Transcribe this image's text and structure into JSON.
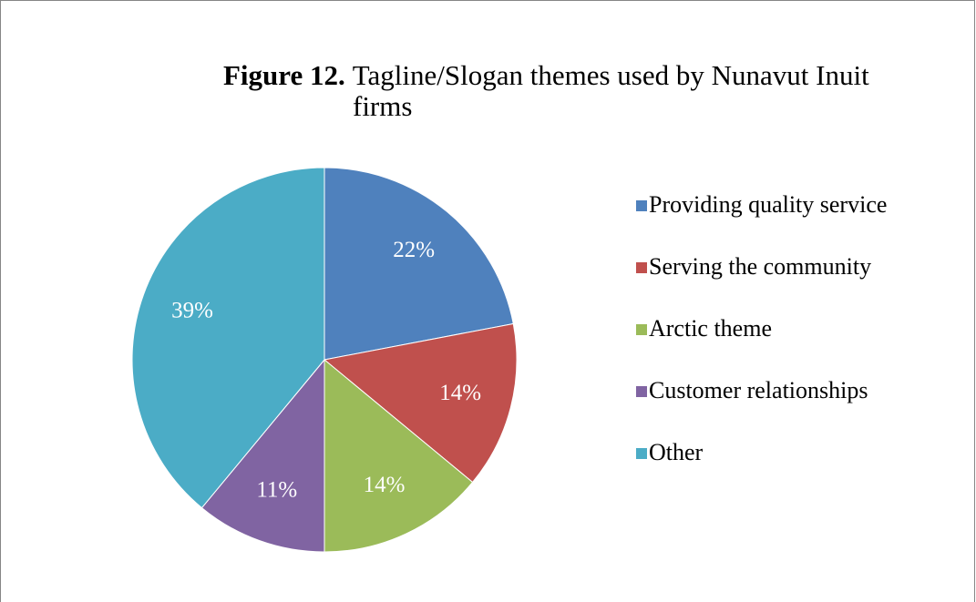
{
  "chart_data": {
    "type": "pie",
    "figure_label": "Figure 12.",
    "title": "Tagline/Slogan themes used by Nunavut Inuit firms",
    "categories": [
      "Providing quality service",
      "Serving the community",
      "Arctic theme",
      "Customer relationships",
      "Other"
    ],
    "values": [
      22,
      14,
      14,
      11,
      39
    ],
    "value_labels": [
      "22%",
      "14%",
      "14%",
      "11%",
      "39%"
    ],
    "colors": [
      "#4f81bd",
      "#c0504d",
      "#9bbb59",
      "#8064a2",
      "#4bacc6"
    ],
    "legend": "right"
  }
}
